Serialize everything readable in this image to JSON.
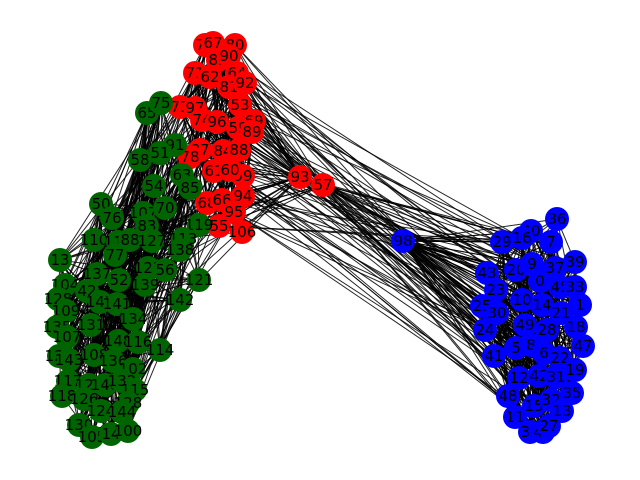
{
  "colors": {
    "red": "#ff0000",
    "green": "#006400",
    "blue": "#0000ff",
    "edge": "#000000"
  },
  "nodes": [
    {
      "id": "79",
      "group": "red"
    },
    {
      "id": "67",
      "group": "red"
    },
    {
      "id": "80",
      "group": "red"
    },
    {
      "id": "82",
      "group": "red"
    },
    {
      "id": "90",
      "group": "red"
    },
    {
      "id": "71",
      "group": "red"
    },
    {
      "id": "62",
      "group": "red"
    },
    {
      "id": "64",
      "group": "red"
    },
    {
      "id": "81",
      "group": "red"
    },
    {
      "id": "92",
      "group": "red"
    },
    {
      "id": "73",
      "group": "red"
    },
    {
      "id": "97",
      "group": "red"
    },
    {
      "id": "53",
      "group": "red"
    },
    {
      "id": "74",
      "group": "red"
    },
    {
      "id": "96",
      "group": "red"
    },
    {
      "id": "69",
      "group": "red"
    },
    {
      "id": "59",
      "group": "red"
    },
    {
      "id": "89",
      "group": "red"
    },
    {
      "id": "87",
      "group": "red"
    },
    {
      "id": "84",
      "group": "red"
    },
    {
      "id": "88",
      "group": "red"
    },
    {
      "id": "78",
      "group": "red"
    },
    {
      "id": "61",
      "group": "red"
    },
    {
      "id": "99",
      "group": "red"
    },
    {
      "id": "93",
      "group": "red"
    },
    {
      "id": "57",
      "group": "red"
    },
    {
      "id": "68",
      "group": "red"
    },
    {
      "id": "66",
      "group": "red"
    },
    {
      "id": "94",
      "group": "red"
    },
    {
      "id": "95",
      "group": "red"
    },
    {
      "id": "55",
      "group": "red"
    },
    {
      "id": "106",
      "group": "red"
    },
    {
      "id": "60",
      "group": "red"
    },
    {
      "id": "65",
      "group": "green"
    },
    {
      "id": "75",
      "group": "green"
    },
    {
      "id": "91",
      "group": "green"
    },
    {
      "id": "58",
      "group": "green"
    },
    {
      "id": "51",
      "group": "green"
    },
    {
      "id": "63",
      "group": "green"
    },
    {
      "id": "54",
      "group": "green"
    },
    {
      "id": "85",
      "group": "green"
    },
    {
      "id": "50",
      "group": "green"
    },
    {
      "id": "76",
      "group": "green"
    },
    {
      "id": "107",
      "group": "green"
    },
    {
      "id": "70",
      "group": "green"
    },
    {
      "id": "83",
      "group": "green"
    },
    {
      "id": "119",
      "group": "green"
    },
    {
      "id": "110",
      "group": "green"
    },
    {
      "id": "118",
      "group": "green"
    },
    {
      "id": "88b",
      "label": "88",
      "group": "green"
    },
    {
      "id": "127",
      "group": "green"
    },
    {
      "id": "113",
      "group": "green"
    },
    {
      "id": "138",
      "group": "green"
    },
    {
      "id": "77",
      "group": "green"
    },
    {
      "id": "13",
      "group": "green"
    },
    {
      "id": "123",
      "group": "green"
    },
    {
      "id": "56",
      "group": "green"
    },
    {
      "id": "121",
      "group": "green"
    },
    {
      "id": "104",
      "group": "green"
    },
    {
      "id": "137",
      "group": "green"
    },
    {
      "id": "52",
      "group": "green"
    },
    {
      "id": "139",
      "group": "green"
    },
    {
      "id": "42",
      "group": "green"
    },
    {
      "id": "128",
      "group": "green"
    },
    {
      "id": "145",
      "group": "green"
    },
    {
      "id": "141",
      "group": "green"
    },
    {
      "id": "142",
      "group": "green"
    },
    {
      "id": "109",
      "group": "green"
    },
    {
      "id": "134",
      "group": "green"
    },
    {
      "id": "135",
      "group": "green"
    },
    {
      "id": "131",
      "group": "green"
    },
    {
      "id": "107b",
      "label": "107",
      "group": "green"
    },
    {
      "id": "148",
      "group": "green"
    },
    {
      "id": "116",
      "group": "green"
    },
    {
      "id": "114",
      "group": "green"
    },
    {
      "id": "108",
      "group": "green"
    },
    {
      "id": "136",
      "group": "green"
    },
    {
      "id": "122",
      "group": "green"
    },
    {
      "id": "143",
      "group": "green"
    },
    {
      "id": "102",
      "group": "green"
    },
    {
      "id": "117",
      "group": "green"
    },
    {
      "id": "127b",
      "label": "127",
      "group": "green"
    },
    {
      "id": "140",
      "group": "green"
    },
    {
      "id": "132",
      "group": "green"
    },
    {
      "id": "118b",
      "label": "118",
      "group": "green"
    },
    {
      "id": "126",
      "group": "green"
    },
    {
      "id": "115",
      "group": "green"
    },
    {
      "id": "128b",
      "label": "128",
      "group": "green"
    },
    {
      "id": "124",
      "group": "green"
    },
    {
      "id": "144",
      "group": "green"
    },
    {
      "id": "130",
      "group": "green"
    },
    {
      "id": "105",
      "group": "green"
    },
    {
      "id": "14",
      "group": "green"
    },
    {
      "id": "100",
      "group": "green"
    },
    {
      "id": "98",
      "group": "blue"
    },
    {
      "id": "36",
      "group": "blue"
    },
    {
      "id": "29",
      "group": "blue"
    },
    {
      "id": "40",
      "group": "blue"
    },
    {
      "id": "16",
      "group": "blue"
    },
    {
      "id": "7",
      "group": "blue"
    },
    {
      "id": "43",
      "group": "blue"
    },
    {
      "id": "20",
      "group": "blue"
    },
    {
      "id": "9",
      "group": "blue"
    },
    {
      "id": "39",
      "group": "blue"
    },
    {
      "id": "23",
      "group": "blue"
    },
    {
      "id": "0",
      "group": "blue"
    },
    {
      "id": "45",
      "group": "blue"
    },
    {
      "id": "33",
      "group": "blue"
    },
    {
      "id": "37",
      "group": "blue"
    },
    {
      "id": "10",
      "group": "blue"
    },
    {
      "id": "14b",
      "label": "14",
      "group": "blue"
    },
    {
      "id": "25",
      "group": "blue"
    },
    {
      "id": "30",
      "group": "blue"
    },
    {
      "id": "21",
      "group": "blue"
    },
    {
      "id": "1",
      "group": "blue"
    },
    {
      "id": "24",
      "group": "blue"
    },
    {
      "id": "49",
      "group": "blue"
    },
    {
      "id": "28",
      "group": "blue"
    },
    {
      "id": "18",
      "group": "blue"
    },
    {
      "id": "5",
      "group": "blue"
    },
    {
      "id": "8",
      "group": "blue"
    },
    {
      "id": "6",
      "group": "blue"
    },
    {
      "id": "47",
      "group": "blue"
    },
    {
      "id": "41",
      "group": "blue"
    },
    {
      "id": "22",
      "group": "blue"
    },
    {
      "id": "12",
      "group": "blue"
    },
    {
      "id": "42b",
      "label": "42",
      "group": "blue"
    },
    {
      "id": "31",
      "group": "blue"
    },
    {
      "id": "19",
      "group": "blue"
    },
    {
      "id": "35",
      "group": "blue"
    },
    {
      "id": "48",
      "group": "blue"
    },
    {
      "id": "15",
      "group": "blue"
    },
    {
      "id": "32",
      "group": "blue"
    },
    {
      "id": "13b",
      "label": "13",
      "group": "blue"
    },
    {
      "id": "11",
      "group": "blue"
    },
    {
      "id": "38",
      "group": "blue"
    },
    {
      "id": "46",
      "group": "blue"
    },
    {
      "id": "27",
      "group": "blue"
    }
  ]
}
